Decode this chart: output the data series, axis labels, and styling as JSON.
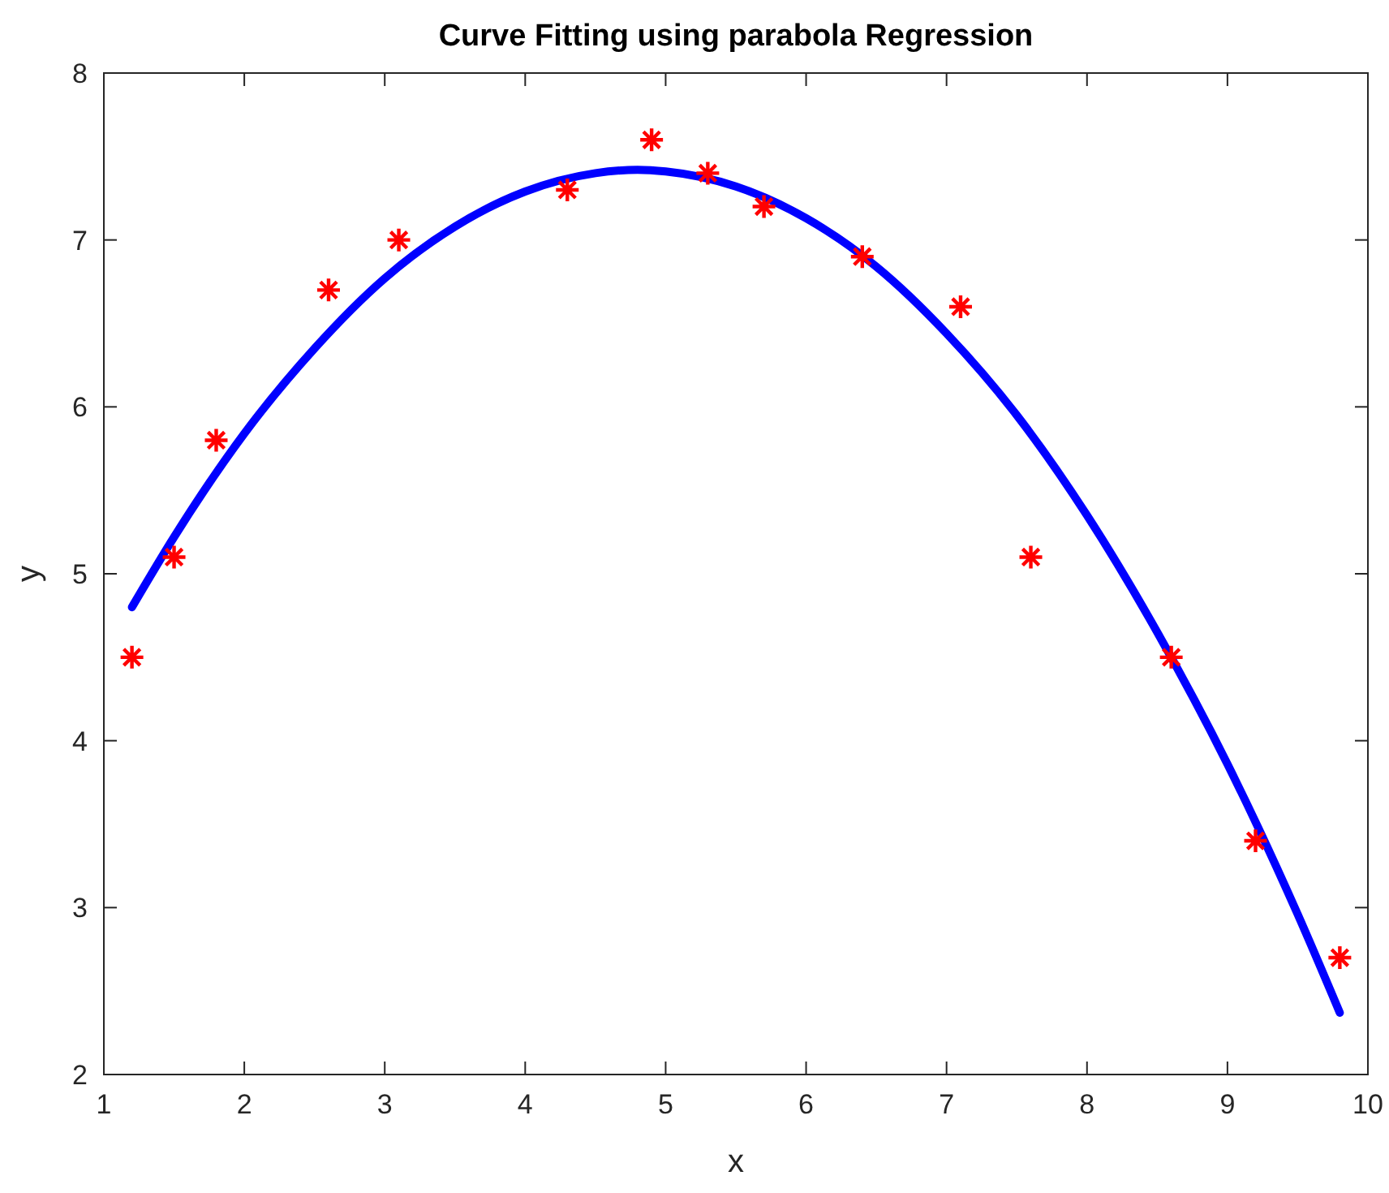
{
  "chart_data": {
    "type": "scatter",
    "title": "Curve Fitting using parabola Regression",
    "xlabel": "x",
    "ylabel": "y",
    "xlim": [
      1,
      10
    ],
    "xticks": [
      1,
      2,
      3,
      4,
      5,
      6,
      7,
      8,
      9,
      10
    ],
    "ylim": [
      2,
      8
    ],
    "yticks": [
      2,
      3,
      4,
      5,
      6,
      7,
      8
    ],
    "grid": false,
    "series": [
      {
        "color": "#ff0000",
        "marker": "cross",
        "x": [
          1.2,
          1.5,
          1.8,
          2.6,
          3.1,
          4.3,
          4.9,
          5.3,
          5.7,
          6.4,
          7.1,
          7.6,
          8.6,
          9.2,
          9.8
        ],
        "values": [
          4.5,
          5.1,
          5.8,
          6.7,
          7.0,
          7.3,
          7.6,
          7.4,
          7.2,
          6.9,
          6.6,
          5.1,
          4.5,
          3.4,
          2.7
        ]
      },
      {
        "type": "line",
        "color": "#0000ff",
        "line_style": "solid",
        "marker": "none",
        "x": [
          1.2,
          1.5,
          2,
          2.5,
          3,
          3.5,
          4,
          4.5,
          4.8,
          5,
          5.5,
          6,
          6.5,
          7,
          7.5,
          8,
          8.5,
          9,
          9.5,
          9.8
        ],
        "values": [
          4.8,
          5.22,
          5.84,
          6.35,
          6.77,
          7.08,
          7.29,
          7.4,
          7.42,
          7.41,
          7.32,
          7.13,
          6.84,
          6.44,
          5.95,
          5.35,
          4.65,
          3.86,
          2.96,
          2.37
        ]
      }
    ]
  }
}
